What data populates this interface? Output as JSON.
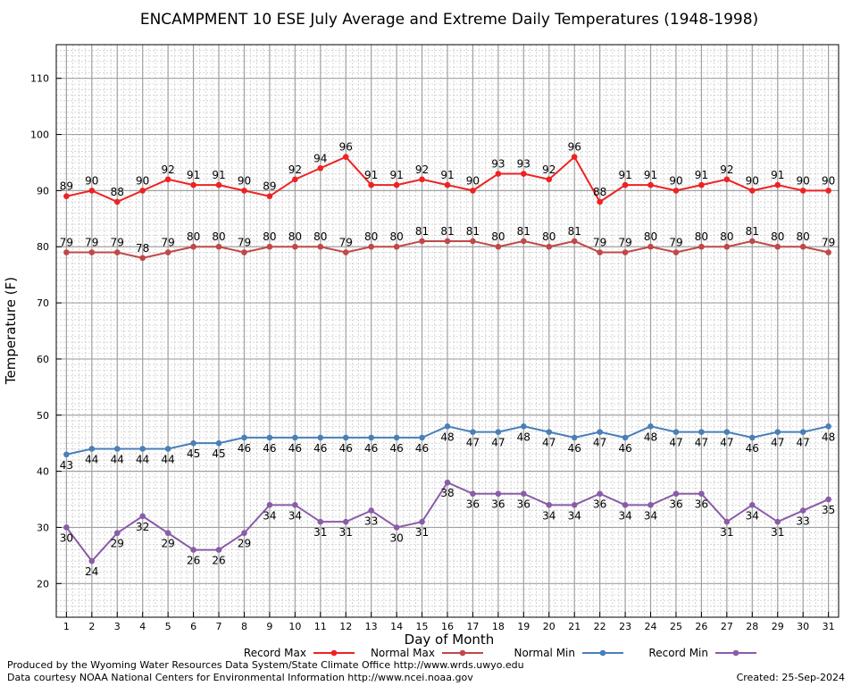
{
  "chart_data": {
    "type": "line",
    "title": "ENCAMPMENT 10 ESE July Average and Extreme Daily Temperatures (1948-1998)",
    "xlabel": "Day of Month",
    "ylabel": "Temperature (F)",
    "x": [
      1,
      2,
      3,
      4,
      5,
      6,
      7,
      8,
      9,
      10,
      11,
      12,
      13,
      14,
      15,
      16,
      17,
      18,
      19,
      20,
      21,
      22,
      23,
      24,
      25,
      26,
      27,
      28,
      29,
      30,
      31
    ],
    "xlim": [
      0.6,
      31.4
    ],
    "ylim": [
      14,
      116
    ],
    "y_ticks": [
      20,
      30,
      40,
      50,
      60,
      70,
      80,
      90,
      100,
      110
    ],
    "grid": true,
    "legend_position": "bottom",
    "series": [
      {
        "name": "Record Max",
        "color": "#ee2222",
        "label_pos": "above",
        "values": [
          89,
          90,
          88,
          90,
          92,
          91,
          91,
          90,
          89,
          92,
          94,
          96,
          91,
          91,
          92,
          91,
          90,
          93,
          93,
          92,
          96,
          88,
          91,
          91,
          90,
          91,
          92,
          90,
          91,
          90,
          90
        ]
      },
      {
        "name": "Normal Max",
        "color": "#c04848",
        "label_pos": "above",
        "values": [
          79,
          79,
          79,
          78,
          79,
          80,
          80,
          79,
          80,
          80,
          80,
          79,
          80,
          80,
          81,
          81,
          81,
          80,
          81,
          80,
          81,
          79,
          79,
          80,
          79,
          80,
          80,
          81,
          80,
          80,
          79
        ]
      },
      {
        "name": "Normal Min",
        "color": "#4a7fb8",
        "label_pos": "below",
        "values": [
          43,
          44,
          44,
          44,
          44,
          45,
          45,
          46,
          46,
          46,
          46,
          46,
          46,
          46,
          46,
          48,
          47,
          47,
          48,
          47,
          46,
          47,
          46,
          48,
          47,
          47,
          47,
          46,
          47,
          47,
          48
        ]
      },
      {
        "name": "Record Min",
        "color": "#8a5ca8",
        "label_pos": "below",
        "values": [
          30,
          24,
          29,
          32,
          29,
          26,
          26,
          29,
          34,
          34,
          31,
          31,
          33,
          30,
          31,
          38,
          36,
          36,
          36,
          34,
          34,
          36,
          34,
          34,
          36,
          36,
          31,
          34,
          31,
          33,
          35
        ]
      }
    ]
  },
  "footer": {
    "produced_by": "Produced by the Wyoming Water Resources Data System/State Climate Office http://www.wrds.uwyo.edu",
    "courtesy": "Data courtesy NOAA National Centers for Environmental Information http://www.ncei.noaa.gov",
    "created": "Created: 25-Sep-2024"
  }
}
